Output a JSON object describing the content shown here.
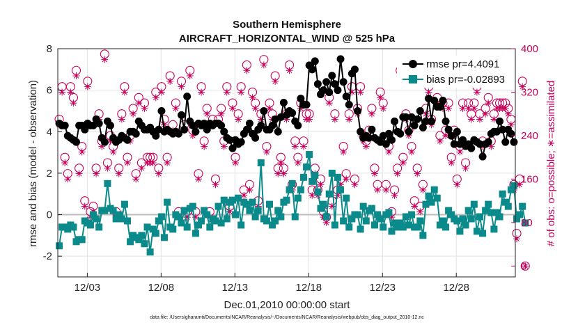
{
  "chart_data": {
    "type": "line",
    "title": "Southern Hemisphere",
    "subtitle": "AIRCRAFT_HORIZONTAL_WIND @ 525 hPa",
    "xlabel": "Dec.01,2010 00:00:00 start",
    "ylabel_left": "rmse and bias (model - observation)",
    "ylabel_right": "# of obs: o=possible; ∗=assimilated",
    "footnote": "data file: /Users/gharamti/Documents/NCAR/Reanalysis/~/Documents/NCAR/Reanalysis/webpub/obs_diag_output_2010-12.nc",
    "x_ticks": [
      {
        "day": 3,
        "label": "12/03"
      },
      {
        "day": 8,
        "label": "12/08"
      },
      {
        "day": 13,
        "label": "12/13"
      },
      {
        "day": 18,
        "label": "12/18"
      },
      {
        "day": 23,
        "label": "12/23"
      },
      {
        "day": 28,
        "label": "12/28"
      }
    ],
    "xlim": [
      1,
      32
    ],
    "ylim_left": [
      -3,
      8
    ],
    "yticks_left": [
      "-2",
      "0",
      "2",
      "4",
      "6",
      "8"
    ],
    "ylim_right": [
      -20,
      400
    ],
    "yticks_right": [
      "0",
      "80",
      "160",
      "240",
      "320",
      "400"
    ],
    "grid": true,
    "legend_position": "top-right",
    "colors": {
      "rmse": "#000000",
      "bias": "#0a8a8a",
      "obs": "#c8005a",
      "zero_line": "#bbbbbb"
    },
    "series": [
      {
        "name": "rmse pr=4.4091",
        "key": "rmse",
        "values": [
          4.4,
          4.3,
          4.3,
          3.8,
          3.7,
          3.6,
          3.5,
          4.3,
          4.3,
          4.1,
          4.4,
          4.3,
          4.3,
          4.6,
          4.4,
          3.7,
          3.5,
          4.5,
          4.3,
          3.7,
          3.5,
          3.6,
          3.8,
          3.7,
          3.6,
          4.0,
          4.0,
          3.9,
          4.5,
          4.3,
          4.1,
          4.1,
          4.2,
          4.0,
          3.8,
          4.1,
          5.0,
          4.0,
          4.1,
          4.0,
          3.9,
          4.0,
          3.9,
          4.8,
          4.1,
          5.7,
          4.5,
          4.3,
          4.0,
          4.4,
          4.3,
          4.4,
          4.1,
          4.4,
          4.3,
          4.4,
          4.4,
          4.3,
          4.0,
          3.7,
          3.6,
          3.2,
          3.6,
          3.4,
          3.5,
          3.9,
          4.1,
          4.4,
          3.9,
          3.7,
          4.1,
          4.3,
          5.0,
          4.1,
          4.1,
          4.3,
          4.6,
          4.0,
          4.7,
          5.4,
          4.8,
          5.0,
          4.9,
          4.5,
          4.3,
          5.6,
          5.3,
          5.3,
          7.2,
          7.0,
          7.4,
          6.3,
          5.8,
          6.0,
          6.4,
          5.9,
          6.7,
          6.3,
          6.0,
          7.5,
          6.4,
          5.7,
          5.3,
          6.8,
          7.0,
          5.0,
          4.0,
          3.7,
          3.8,
          3.7,
          4.1,
          3.7,
          3.6,
          3.5,
          3.8,
          3.4,
          3.9,
          3.6,
          4.5,
          4.0,
          3.9,
          4.7,
          4.7,
          4.0,
          4.7,
          4.3,
          4.6,
          5.0,
          4.2,
          4.5,
          5.6,
          4.5,
          5.5,
          5.2,
          5.2,
          5.5,
          4.5,
          4.1,
          3.8,
          3.4,
          4.0,
          3.4,
          3.6,
          3.3,
          3.4,
          3.2,
          3.6,
          3.5,
          3.4,
          2.8,
          3.4,
          3.5,
          3.9,
          4.0,
          4.0,
          4.5,
          4.1,
          3.5,
          4.1,
          3.9,
          3.5
        ]
      },
      {
        "name": "bias pr=-0.02893",
        "key": "bias",
        "values": [
          -1.5,
          -0.6,
          -0.6,
          -0.7,
          -0.5,
          -0.6,
          -1.3,
          -1.2,
          -1.2,
          -0.3,
          -0.4,
          -0.5,
          0.0,
          -0.2,
          -0.6,
          0.2,
          0.2,
          1.5,
          0.3,
          0.2,
          -0.2,
          0.0,
          -0.2,
          0.5,
          -0.3,
          -1.3,
          -1.0,
          -1.1,
          -1.2,
          -1.0,
          -1.4,
          -0.6,
          -1.8,
          -0.7,
          -0.9,
          -0.3,
          -0.1,
          -1.1,
          0.6,
          -0.6,
          -0.7,
          0.0,
          -0.1,
          -0.4,
          0.2,
          -0.6,
          0.3,
          0.4,
          -0.9,
          -0.5,
          -0.3,
          0.2,
          0.0,
          -0.6,
          -0.2,
          -0.3,
          0.4,
          -0.4,
          0.7,
          -0.2,
          0.6,
          0.7,
          0.0,
          0.8,
          -0.5,
          0.6,
          0.5,
          0.2,
          0.6,
          -0.1,
          0.2,
          2.5,
          -0.2,
          -0.3,
          0.5,
          -0.5,
          -0.3,
          0.2,
          -0.1,
          0.6,
          0.7,
          1.2,
          1.5,
          -0.1,
          0.8,
          1.2,
          1.8,
          2.3,
          2.9,
          1.6,
          1.9,
          1.1,
          0.3,
          0.5,
          -0.1,
          1.0,
          2.0,
          -0.5,
          1.8,
          1.2,
          -0.3,
          0.8,
          -0.6,
          -0.2,
          0.0,
          0.0,
          -0.7,
          0.4,
          -0.3,
          0.2,
          0.3,
          -0.5,
          0.0,
          -0.2,
          -0.6,
          0.0,
          0.1,
          -0.8,
          -0.4,
          -0.6,
          -0.4,
          -0.6,
          -0.1,
          -0.5,
          0.0,
          -0.6,
          -0.6,
          -0.3,
          -1.0,
          0.5,
          0.9,
          0.6,
          1.2,
          0.8,
          -0.5,
          -0.3,
          -0.6,
          0.2,
          0.0,
          -0.2,
          -0.3,
          -0.8,
          -0.2,
          -0.5,
          0.2,
          -0.2,
          0.5,
          -0.8,
          -0.1,
          -0.9,
          0.2,
          0.5,
          0.1,
          -0.7,
          0.1,
          -0.1,
          1.0,
          0.6,
          0.4,
          1.2,
          1.4,
          -0.2,
          0.0,
          0.4,
          -0.4
        ]
      },
      {
        "name": "# of obs possible",
        "key": "obs_possible",
        "values": [
          270,
          330,
          200,
          170,
          330,
          310,
          360,
          180,
          220,
          120,
          340,
          100,
          110,
          180,
          280,
          230,
          390,
          190,
          240,
          220,
          100,
          180,
          280,
          330,
          200,
          240,
          290,
          170,
          310,
          190,
          300,
          200,
          200,
          200,
          320,
          180,
          330,
          270,
          200,
          350,
          260,
          300,
          100,
          340,
          260,
          100,
          360,
          250,
          100,
          170,
          330,
          230,
          290,
          100,
          270,
          160,
          270,
          290,
          230,
          330,
          110,
          300,
          200,
          280,
          330,
          140,
          370,
          150,
          320,
          300,
          120,
          280,
          380,
          220,
          300,
          280,
          350,
          180,
          200,
          180,
          280,
          370,
          150,
          230,
          200,
          300,
          230,
          280,
          280,
          140,
          180,
          140,
          160,
          100,
          90,
          310,
          120,
          280,
          140,
          160,
          220,
          170,
          280,
          330,
          160,
          290,
          330,
          240,
          230,
          250,
          290,
          180,
          150,
          320,
          300,
          150,
          220,
          100,
          140,
          180,
          360,
          200,
          280,
          250,
          220,
          120,
          180,
          110,
          150,
          290,
          330,
          270,
          350,
          310,
          240,
          300,
          250,
          300,
          200,
          250,
          160,
          220,
          300,
          190,
          300,
          280,
          300,
          330,
          280,
          230,
          290,
          310,
          230,
          280,
          300,
          300,
          300,
          300,
          290,
          270,
          150,
          60,
          160,
          340,
          0
        ]
      },
      {
        "name": "# of obs assimilated",
        "key": "obs_assimilated",
        "values": [
          260,
          320,
          190,
          160,
          320,
          300,
          350,
          170,
          210,
          110,
          330,
          90,
          100,
          170,
          270,
          220,
          380,
          180,
          230,
          210,
          90,
          170,
          270,
          320,
          190,
          230,
          280,
          160,
          300,
          180,
          290,
          190,
          190,
          190,
          310,
          170,
          320,
          260,
          190,
          340,
          250,
          290,
          90,
          330,
          250,
          90,
          350,
          240,
          90,
          160,
          320,
          220,
          280,
          90,
          260,
          150,
          260,
          280,
          220,
          320,
          100,
          290,
          190,
          270,
          320,
          130,
          360,
          140,
          310,
          290,
          110,
          270,
          370,
          210,
          290,
          270,
          340,
          170,
          190,
          170,
          270,
          360,
          140,
          220,
          190,
          290,
          220,
          270,
          270,
          130,
          170,
          130,
          150,
          90,
          80,
          300,
          110,
          270,
          130,
          150,
          210,
          160,
          270,
          320,
          150,
          280,
          320,
          230,
          220,
          240,
          280,
          170,
          140,
          310,
          290,
          140,
          210,
          90,
          130,
          170,
          350,
          190,
          270,
          240,
          210,
          110,
          170,
          100,
          140,
          280,
          320,
          260,
          340,
          300,
          230,
          290,
          240,
          290,
          190,
          240,
          150,
          210,
          290,
          180,
          290,
          270,
          290,
          320,
          270,
          220,
          280,
          300,
          220,
          270,
          290,
          290,
          290,
          290,
          280,
          260,
          140,
          50,
          150,
          330,
          0
        ]
      }
    ]
  }
}
